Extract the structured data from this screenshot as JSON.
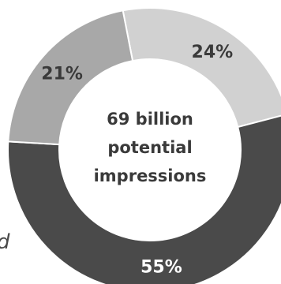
{
  "chart_data": {
    "type": "pie",
    "donut": true,
    "start_angle_deg": -11,
    "categories": [
      "24%",
      "55%",
      "21%"
    ],
    "values": [
      24,
      55,
      21
    ],
    "labels": [
      "24%",
      "55%",
      "21%"
    ],
    "colors": [
      "#d1d1d1",
      "#4a4a4a",
      "#a8a8a8"
    ],
    "label_colors": [
      "#3a3a3a",
      "#ffffff",
      "#3a3a3a"
    ],
    "center_lines": [
      "69 billion",
      "potential",
      "impressions"
    ]
  },
  "side_text": "d"
}
